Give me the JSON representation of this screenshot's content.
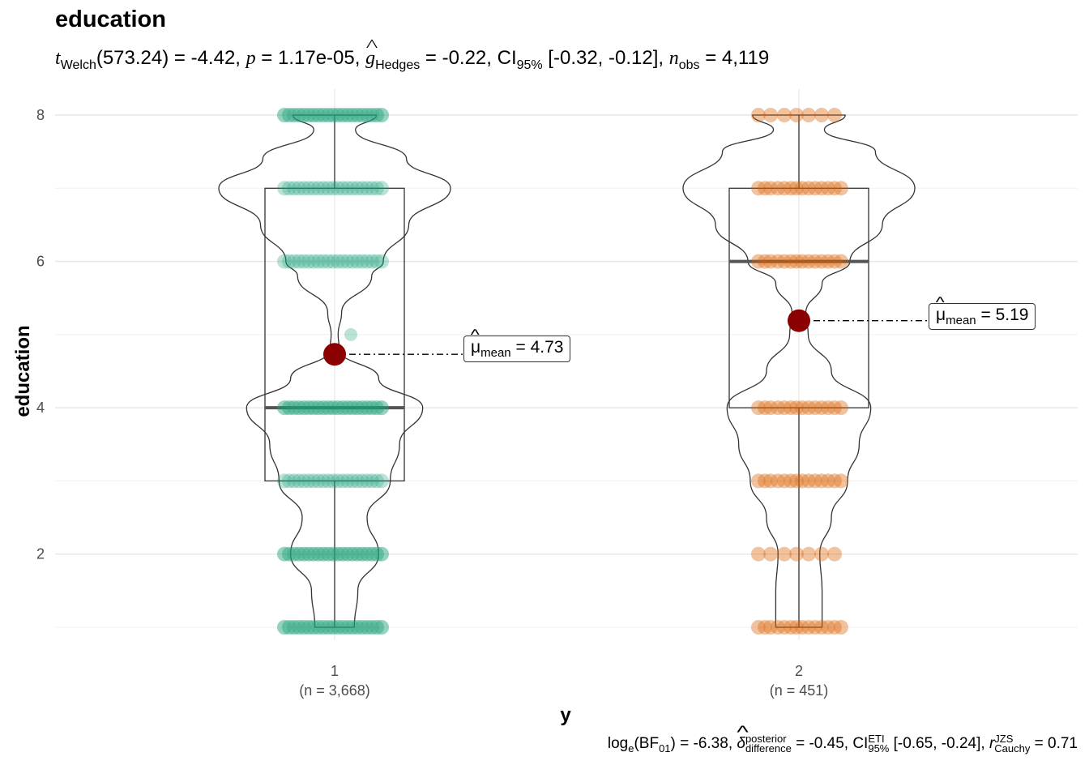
{
  "title": "education",
  "subtitle": {
    "t_label": "t",
    "t_sub": "Welch",
    "df": "(573.24)",
    "t_value": " = -4.42, ",
    "p_label": "p",
    "p_value": " = 1.17e-05, ",
    "g_label": "g",
    "g_sub": "Hedges",
    "g_value": " = -0.22, CI",
    "ci_sub": "95%",
    "ci_value": " [-0.32, -0.12], ",
    "n_label": "n",
    "n_sub": "obs",
    "n_value": " = 4,119"
  },
  "caption": {
    "log_label": "log",
    "log_sub": "e",
    "bf_open": "(BF",
    "bf_sub": "01",
    "bf_value": ") = -6.38, ",
    "delta_label": "δ",
    "delta_sup": "posterior",
    "delta_sub": "difference",
    "delta_value": " = -0.45, CI",
    "ci_sup": "ETI",
    "ci_sub": "95%",
    "ci_value": " [-0.65, -0.24], ",
    "r_label": "r",
    "r_sup": "JZS",
    "r_sub": "Cauchy",
    "r_value": " = 0.71"
  },
  "chart_data": {
    "type": "violin-box-scatter",
    "title": "education",
    "xlabel": "y",
    "ylabel": "education",
    "ylim": [
      0.65,
      8.55
    ],
    "yticks": [
      2,
      4,
      6,
      8
    ],
    "grid": true,
    "categories": [
      "1",
      "2"
    ],
    "category_counts": [
      "(n = 3,668)",
      "(n = 451)"
    ],
    "colors": [
      "#1B9E77",
      "#D95F02"
    ],
    "mean_color": "#8B0000",
    "groups": [
      {
        "name": "1",
        "n": 3668,
        "mean": 4.73,
        "mean_label": "4.73",
        "box": {
          "min": 1,
          "q1": 3,
          "median": 4,
          "q3": 7,
          "max": 8
        },
        "point_levels": [
          1,
          2,
          3,
          4,
          6,
          7,
          8
        ],
        "outlier_points": [
          5
        ],
        "violin_density": [
          [
            1.0,
            0.17
          ],
          [
            1.5,
            0.2
          ],
          [
            2.0,
            0.38
          ],
          [
            2.5,
            0.28
          ],
          [
            3.0,
            0.48
          ],
          [
            3.5,
            0.56
          ],
          [
            4.0,
            0.76
          ],
          [
            4.4,
            0.38
          ],
          [
            4.8,
            0.04
          ],
          [
            5.0,
            0.03
          ],
          [
            5.3,
            0.06
          ],
          [
            5.8,
            0.32
          ],
          [
            6.0,
            0.42
          ],
          [
            6.5,
            0.64
          ],
          [
            7.0,
            1.0
          ],
          [
            7.4,
            0.62
          ],
          [
            7.8,
            0.18
          ],
          [
            8.0,
            0.36
          ]
        ]
      },
      {
        "name": "2",
        "n": 451,
        "mean": 5.19,
        "mean_label": "5.19",
        "box": {
          "min": 1,
          "q1": 4,
          "median": 6,
          "q3": 7,
          "max": 8
        },
        "point_levels": [
          1,
          2,
          3,
          4,
          6,
          7,
          8
        ],
        "violin_density": [
          [
            1.0,
            0.2
          ],
          [
            1.5,
            0.2
          ],
          [
            2.0,
            0.18
          ],
          [
            2.5,
            0.28
          ],
          [
            3.0,
            0.42
          ],
          [
            3.5,
            0.52
          ],
          [
            4.0,
            0.62
          ],
          [
            4.5,
            0.28
          ],
          [
            5.0,
            0.08
          ],
          [
            5.3,
            0.06
          ],
          [
            5.7,
            0.2
          ],
          [
            6.0,
            0.44
          ],
          [
            6.5,
            0.72
          ],
          [
            7.0,
            1.0
          ],
          [
            7.5,
            0.66
          ],
          [
            7.8,
            0.22
          ],
          [
            8.0,
            0.4
          ]
        ]
      }
    ]
  }
}
